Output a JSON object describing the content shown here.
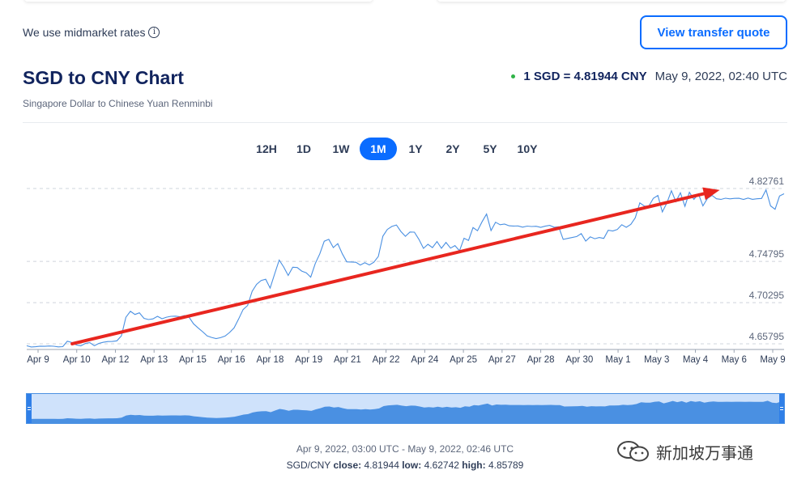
{
  "header": {
    "midmarket_text": "We use midmarket rates",
    "info_icon_glyph": "i",
    "quote_button": "View transfer quote"
  },
  "title": {
    "main": "SGD to CNY Chart",
    "subtitle": "Singapore Dollar to Chinese Yuan Renminbi"
  },
  "rate": {
    "value": "1 SGD = 4.81944 CNY",
    "timestamp": "May 9, 2022, 02:40 UTC",
    "status_color": "#2fb347"
  },
  "tabs": [
    {
      "label": "12H",
      "active": false
    },
    {
      "label": "1D",
      "active": false
    },
    {
      "label": "1W",
      "active": false
    },
    {
      "label": "1M",
      "active": true
    },
    {
      "label": "1Y",
      "active": false
    },
    {
      "label": "2Y",
      "active": false
    },
    {
      "label": "5Y",
      "active": false
    },
    {
      "label": "10Y",
      "active": false
    }
  ],
  "chart_data": {
    "type": "line",
    "series": [
      {
        "color": "#4a90e2",
        "values": [
          4.6558,
          4.6545,
          4.6548,
          4.6554,
          4.6552,
          4.6556,
          4.6553,
          4.6546,
          4.6549,
          4.6608,
          4.6594,
          4.6568,
          4.6557,
          4.6584,
          4.6592,
          4.6558,
          4.6584,
          4.6596,
          4.6604,
          4.6605,
          4.6612,
          4.6667,
          4.6869,
          4.6935,
          4.69,
          4.6918,
          4.6858,
          4.6845,
          4.6852,
          4.688,
          4.6853,
          4.687,
          4.688,
          4.6882,
          4.6875,
          4.6888,
          4.687,
          4.6799,
          4.6754,
          4.6712,
          4.6667,
          4.6649,
          4.6637,
          4.6647,
          4.6664,
          4.6703,
          4.6754,
          4.6851,
          4.6953,
          4.6998,
          4.7153,
          4.7229,
          4.7271,
          4.7285,
          4.7188,
          4.7344,
          4.7494,
          4.7419,
          4.7326,
          4.7416,
          4.7413,
          4.7374,
          4.7355,
          4.7308,
          4.7456,
          4.7562,
          4.77,
          4.7721,
          4.7631,
          4.7674,
          4.7563,
          4.7475,
          4.7473,
          4.747,
          4.744,
          4.7466,
          4.7441,
          4.747,
          4.7535,
          4.7756,
          4.7829,
          4.7862,
          4.7878,
          4.7807,
          4.7754,
          4.7801,
          4.7799,
          4.772,
          4.7622,
          4.7666,
          4.763,
          4.7696,
          4.7623,
          4.7687,
          4.7625,
          4.7652,
          4.7596,
          4.7733,
          4.7709,
          4.7849,
          4.7815,
          4.7912,
          4.7997,
          4.7817,
          4.7908,
          4.788,
          4.7887,
          4.7869,
          4.7866,
          4.7867,
          4.7854,
          4.7865,
          4.7861,
          4.7863,
          4.7852,
          4.7864,
          4.7873,
          4.7853,
          4.7858,
          4.772,
          4.7731,
          4.7741,
          4.7751,
          4.7783,
          4.7702,
          4.7748,
          4.7727,
          4.7741,
          4.7731,
          4.782,
          4.7812,
          4.7828,
          4.788,
          4.7852,
          4.7885,
          4.7956,
          4.8119,
          4.8084,
          4.8083,
          4.8169,
          4.82,
          4.802,
          4.8118,
          4.8251,
          4.8132,
          4.8229,
          4.8081,
          4.8235,
          4.8158,
          4.8217,
          4.8086,
          4.8167,
          4.8201,
          4.8164,
          4.8157,
          4.817,
          4.8163,
          4.8168,
          4.8169,
          4.8157,
          4.8172,
          4.8158,
          4.8164,
          4.8167,
          4.8261,
          4.8086,
          4.8049,
          4.8194,
          4.8219
        ]
      }
    ],
    "x_tick_labels": [
      "Apr 9",
      "Apr 10",
      "Apr 12",
      "Apr 13",
      "Apr 15",
      "Apr 16",
      "Apr 18",
      "Apr 19",
      "Apr 21",
      "Apr 22",
      "Apr 24",
      "Apr 25",
      "Apr 27",
      "Apr 28",
      "Apr 30",
      "May 1",
      "May 3",
      "May 4",
      "May 6",
      "May 9"
    ],
    "y_tick_labels": [
      "4.82761",
      "4.74795",
      "4.70295",
      "4.65795"
    ],
    "y_ticks": [
      4.82761,
      4.74795,
      4.70295,
      4.65795
    ],
    "ylim": [
      4.65795,
      4.82761
    ],
    "grid": true,
    "annotation_arrow": {
      "color": "#e8261f",
      "from": [
        0.06,
        4.658
      ],
      "to": [
        0.915,
        4.826
      ]
    }
  },
  "navigator": {
    "fill_color": "#4a90e2"
  },
  "footer": {
    "range": "Apr 9, 2022, 03:00 UTC - May 9, 2022, 02:46 UTC",
    "pair": "SGD/CNY",
    "close_label": "close:",
    "close_value": "4.81944",
    "low_label": "low:",
    "low_value": "4.62742",
    "high_label": "high:",
    "high_value": "4.85789"
  },
  "watermark": {
    "text": "新加坡万事通"
  }
}
